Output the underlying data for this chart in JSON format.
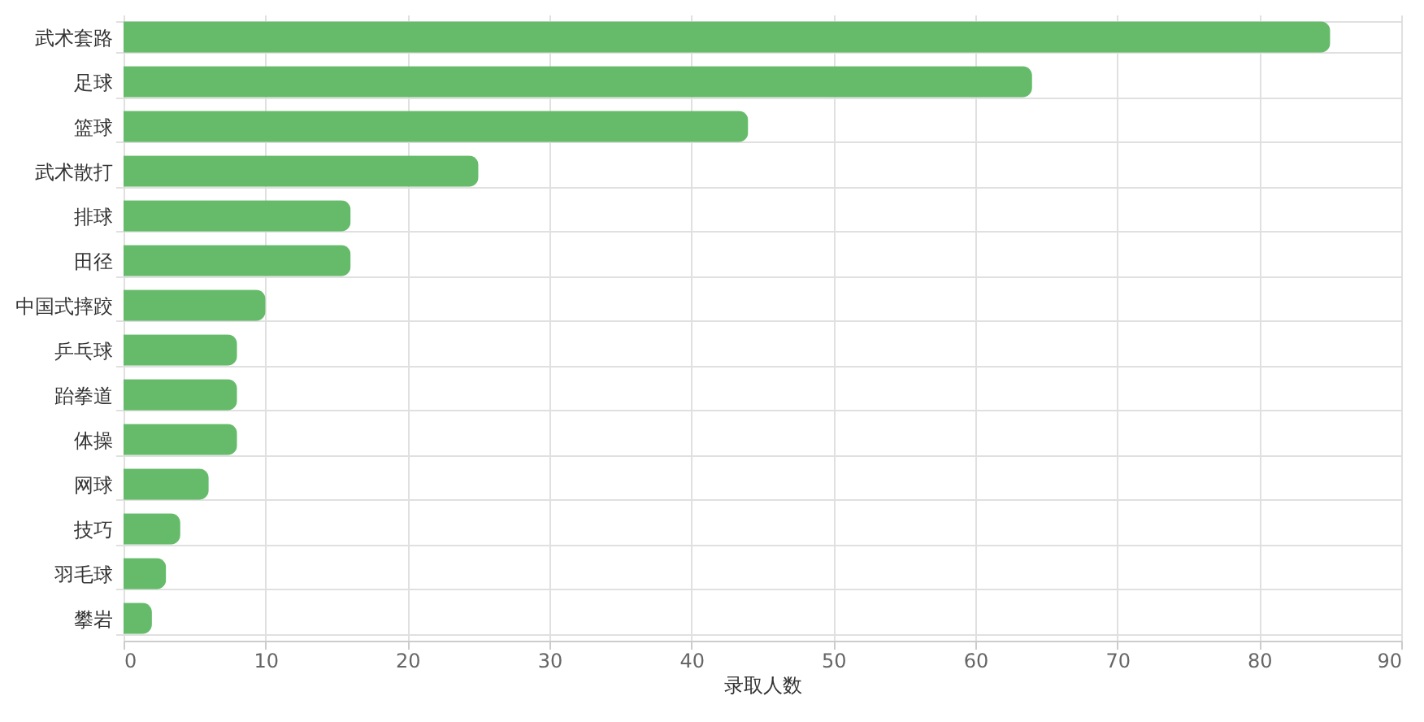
{
  "chart_data": {
    "type": "bar",
    "orientation": "horizontal",
    "xlabel": "录取人数",
    "categories": [
      "武术套路",
      "足球",
      "篮球",
      "武术散打",
      "排球",
      "田径",
      "中国式摔跤",
      "乒乓球",
      "跆拳道",
      "体操",
      "网球",
      "技巧",
      "羽毛球",
      "攀岩"
    ],
    "values": [
      85,
      64,
      44,
      25,
      16,
      16,
      10,
      8,
      8,
      8,
      6,
      4,
      3,
      2
    ],
    "color": "#66bb6a",
    "xlim": [
      0,
      90
    ],
    "xticks": [
      0,
      10,
      20,
      30,
      40,
      50,
      60,
      70,
      80,
      90
    ],
    "grid": true
  }
}
